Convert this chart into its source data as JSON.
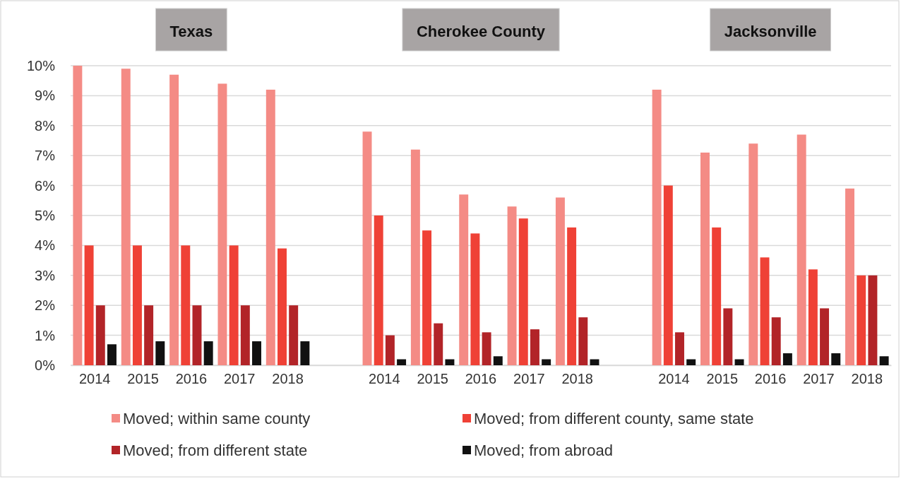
{
  "chart_data": {
    "type": "bar",
    "categories": [
      "2014",
      "2015",
      "2016",
      "2017",
      "2018",
      null,
      "2014",
      "2015",
      "2016",
      "2017",
      "2018",
      null,
      "2014",
      "2015",
      "2016",
      "2017",
      "2018"
    ],
    "series": [
      {
        "name": "Moved; within same county",
        "color": "#f48b85",
        "values": [
          10,
          9.9,
          9.7,
          9.4,
          9.2,
          null,
          7.8,
          7.2,
          5.7,
          5.3,
          5.6,
          null,
          9.2,
          7.1,
          7.4,
          7.7,
          5.9
        ]
      },
      {
        "name": "Moved; from different county, same state",
        "color": "#ef4136",
        "values": [
          4,
          4,
          4,
          4,
          3.9,
          null,
          5,
          4.5,
          4.4,
          4.9,
          4.6,
          null,
          6,
          4.6,
          3.6,
          3.2,
          3
        ]
      },
      {
        "name": "Moved; from different state",
        "color": "#b22428",
        "values": [
          2,
          2,
          2,
          2,
          2,
          null,
          1,
          1.4,
          1.1,
          1.2,
          1.6,
          null,
          1.1,
          1.9,
          1.6,
          1.9,
          3
        ]
      },
      {
        "name": "Moved; from abroad",
        "color": "#111111",
        "values": [
          0.7,
          0.8,
          0.8,
          0.8,
          0.8,
          null,
          0.2,
          0.2,
          0.3,
          0.2,
          0.2,
          null,
          0.2,
          0.2,
          0.4,
          0.4,
          0.3
        ]
      }
    ],
    "annotations": [
      "Texas",
      "Cherokee County",
      "Jacksonville"
    ],
    "ylim": [
      0,
      10
    ],
    "yticks": [
      {
        "value": 0,
        "label": "0%"
      },
      {
        "value": 1,
        "label": "1%"
      },
      {
        "value": 2,
        "label": "2%"
      },
      {
        "value": 3,
        "label": "3%"
      },
      {
        "value": 4,
        "label": "4%"
      },
      {
        "value": 5,
        "label": "5%"
      },
      {
        "value": 6,
        "label": "6%"
      },
      {
        "value": 7,
        "label": "7%"
      },
      {
        "value": 8,
        "label": "8%"
      },
      {
        "value": 9,
        "label": "9%"
      },
      {
        "value": 10,
        "label": "10%"
      }
    ],
    "grid": "y",
    "legend": "bottom"
  }
}
